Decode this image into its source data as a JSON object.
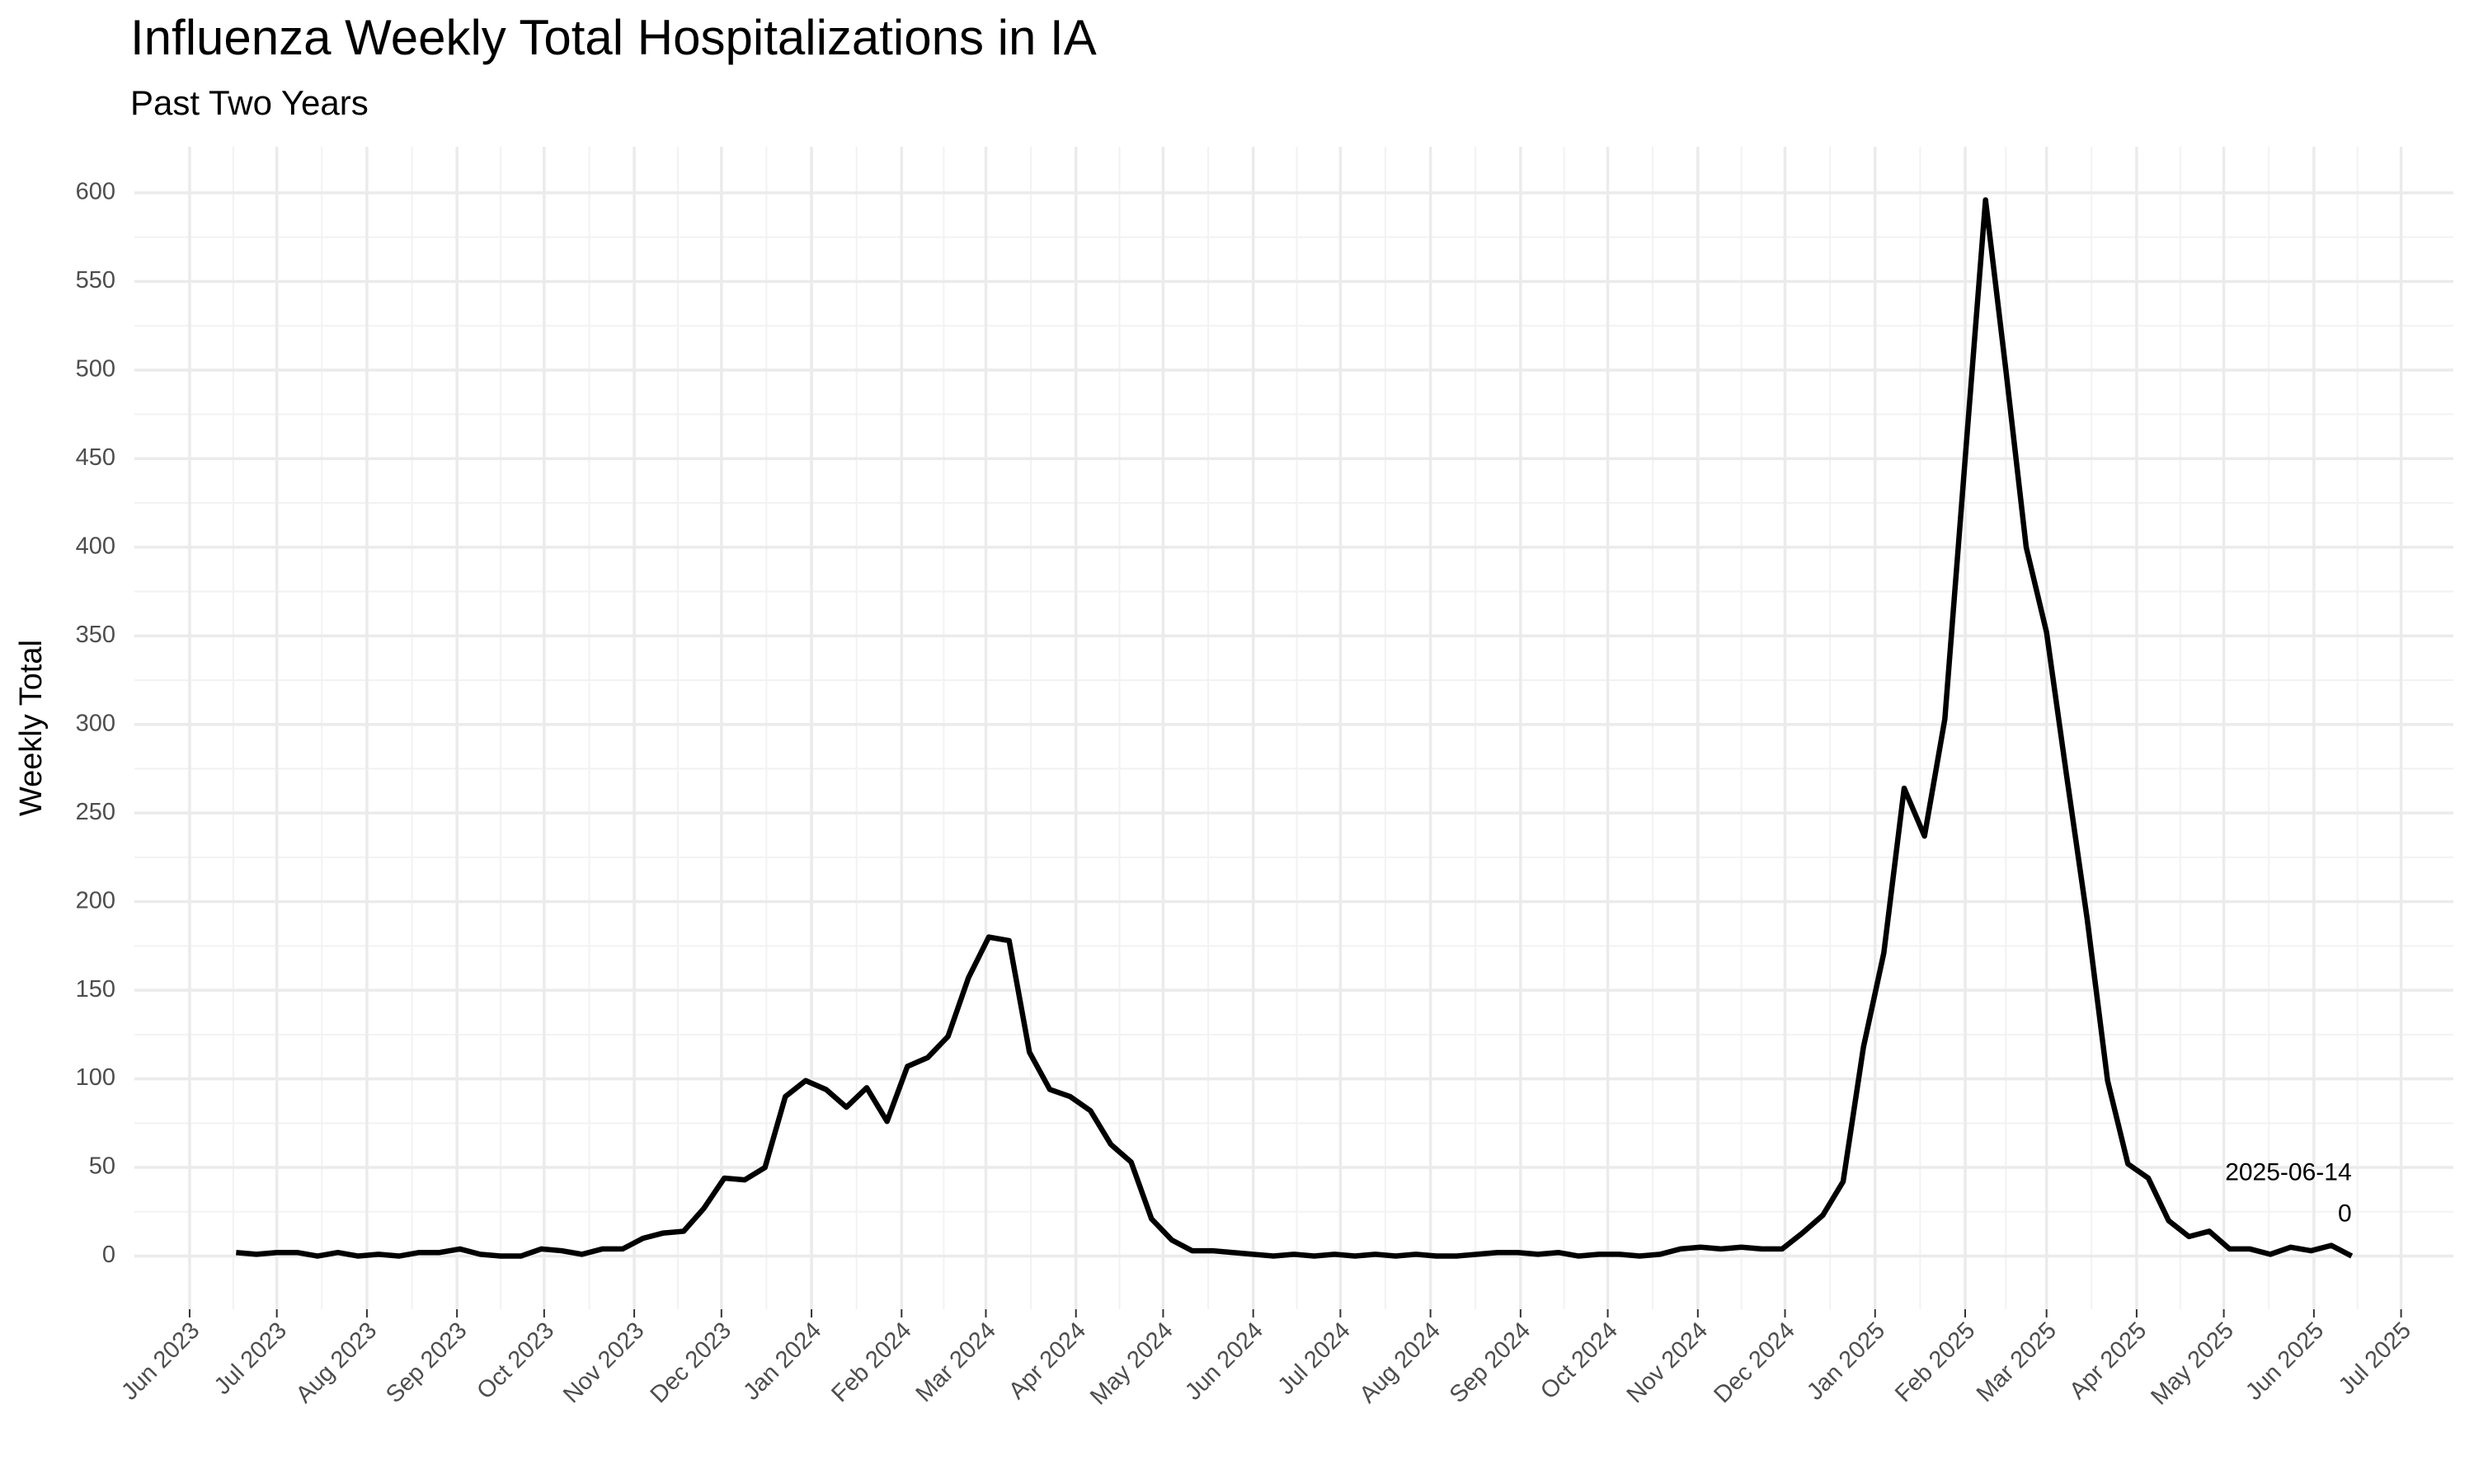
{
  "chart_data": {
    "type": "line",
    "title": "Influenza Weekly Total Hospitalizations in IA",
    "subtitle": "Past Two Years",
    "y_label": "Weekly Total",
    "color": "#000000",
    "grid": true,
    "x": [
      "2023-06-17",
      "2023-06-24",
      "2023-07-01",
      "2023-07-08",
      "2023-07-15",
      "2023-07-22",
      "2023-07-29",
      "2023-08-05",
      "2023-08-12",
      "2023-08-19",
      "2023-08-26",
      "2023-09-02",
      "2023-09-09",
      "2023-09-16",
      "2023-09-23",
      "2023-09-30",
      "2023-10-07",
      "2023-10-14",
      "2023-10-21",
      "2023-10-28",
      "2023-11-04",
      "2023-11-11",
      "2023-11-18",
      "2023-11-25",
      "2023-12-02",
      "2023-12-09",
      "2023-12-16",
      "2023-12-23",
      "2023-12-30",
      "2024-01-06",
      "2024-01-13",
      "2024-01-20",
      "2024-01-27",
      "2024-02-03",
      "2024-02-10",
      "2024-02-17",
      "2024-02-24",
      "2024-03-02",
      "2024-03-09",
      "2024-03-16",
      "2024-03-23",
      "2024-03-30",
      "2024-04-06",
      "2024-04-13",
      "2024-04-20",
      "2024-04-27",
      "2024-05-04",
      "2024-05-11",
      "2024-05-18",
      "2024-05-25",
      "2024-06-01",
      "2024-06-08",
      "2024-06-15",
      "2024-06-22",
      "2024-06-29",
      "2024-07-06",
      "2024-07-13",
      "2024-07-20",
      "2024-07-27",
      "2024-08-03",
      "2024-08-10",
      "2024-08-17",
      "2024-08-24",
      "2024-08-31",
      "2024-09-07",
      "2024-09-14",
      "2024-09-21",
      "2024-09-28",
      "2024-10-05",
      "2024-10-12",
      "2024-10-19",
      "2024-10-26",
      "2024-11-02",
      "2024-11-09",
      "2024-11-16",
      "2024-11-23",
      "2024-11-30",
      "2024-12-07",
      "2024-12-14",
      "2024-12-21",
      "2024-12-28",
      "2025-01-04",
      "2025-01-11",
      "2025-01-18",
      "2025-01-25",
      "2025-02-01",
      "2025-02-08",
      "2025-02-15",
      "2025-02-22",
      "2025-03-01",
      "2025-03-08",
      "2025-03-15",
      "2025-03-22",
      "2025-03-29",
      "2025-04-05",
      "2025-04-12",
      "2025-04-19",
      "2025-04-26",
      "2025-05-03",
      "2025-05-10",
      "2025-05-17",
      "2025-05-24",
      "2025-05-31",
      "2025-06-07",
      "2025-06-14"
    ],
    "values": [
      2,
      1,
      2,
      2,
      0,
      2,
      0,
      1,
      0,
      2,
      2,
      4,
      1,
      0,
      0,
      4,
      3,
      1,
      4,
      4,
      10,
      13,
      14,
      27,
      44,
      43,
      50,
      90,
      99,
      94,
      84,
      95,
      76,
      107,
      112,
      124,
      157,
      180,
      178,
      115,
      94,
      90,
      82,
      63,
      53,
      21,
      9,
      3,
      3,
      2,
      1,
      0,
      1,
      0,
      1,
      0,
      1,
      0,
      1,
      0,
      0,
      1,
      2,
      2,
      1,
      2,
      0,
      1,
      1,
      0,
      1,
      4,
      5,
      4,
      5,
      4,
      4,
      13,
      23,
      42,
      118,
      171,
      264,
      237,
      303,
      450,
      596,
      500,
      400,
      352,
      270,
      190,
      99,
      52,
      44,
      20,
      11,
      14,
      4,
      4,
      1,
      5,
      3,
      6,
      0
    ],
    "xlim": [
      "2023-05-13",
      "2025-07-19"
    ],
    "xticks": [
      {
        "value": "2023-06-01",
        "label": "Jun 2023"
      },
      {
        "value": "2023-07-01",
        "label": "Jul 2023"
      },
      {
        "value": "2023-08-01",
        "label": "Aug 2023"
      },
      {
        "value": "2023-09-01",
        "label": "Sep 2023"
      },
      {
        "value": "2023-10-01",
        "label": "Oct 2023"
      },
      {
        "value": "2023-11-01",
        "label": "Nov 2023"
      },
      {
        "value": "2023-12-01",
        "label": "Dec 2023"
      },
      {
        "value": "2024-01-01",
        "label": "Jan 2024"
      },
      {
        "value": "2024-02-01",
        "label": "Feb 2024"
      },
      {
        "value": "2024-03-01",
        "label": "Mar 2024"
      },
      {
        "value": "2024-04-01",
        "label": "Apr 2024"
      },
      {
        "value": "2024-05-01",
        "label": "May 2024"
      },
      {
        "value": "2024-06-01",
        "label": "Jun 2024"
      },
      {
        "value": "2024-07-01",
        "label": "Jul 2024"
      },
      {
        "value": "2024-08-01",
        "label": "Aug 2024"
      },
      {
        "value": "2024-09-01",
        "label": "Sep 2024"
      },
      {
        "value": "2024-10-01",
        "label": "Oct 2024"
      },
      {
        "value": "2024-11-01",
        "label": "Nov 2024"
      },
      {
        "value": "2024-12-01",
        "label": "Dec 2024"
      },
      {
        "value": "2025-01-01",
        "label": "Jan 2025"
      },
      {
        "value": "2025-02-01",
        "label": "Feb 2025"
      },
      {
        "value": "2025-03-01",
        "label": "Mar 2025"
      },
      {
        "value": "2025-04-01",
        "label": "Apr 2025"
      },
      {
        "value": "2025-05-01",
        "label": "May 2025"
      },
      {
        "value": "2025-06-01",
        "label": "Jun 2025"
      },
      {
        "value": "2025-07-01",
        "label": "Jul 2025"
      }
    ],
    "ylim": [
      -30,
      626
    ],
    "yticks": [
      0,
      50,
      100,
      150,
      200,
      250,
      300,
      350,
      400,
      450,
      500,
      550,
      600
    ]
  }
}
